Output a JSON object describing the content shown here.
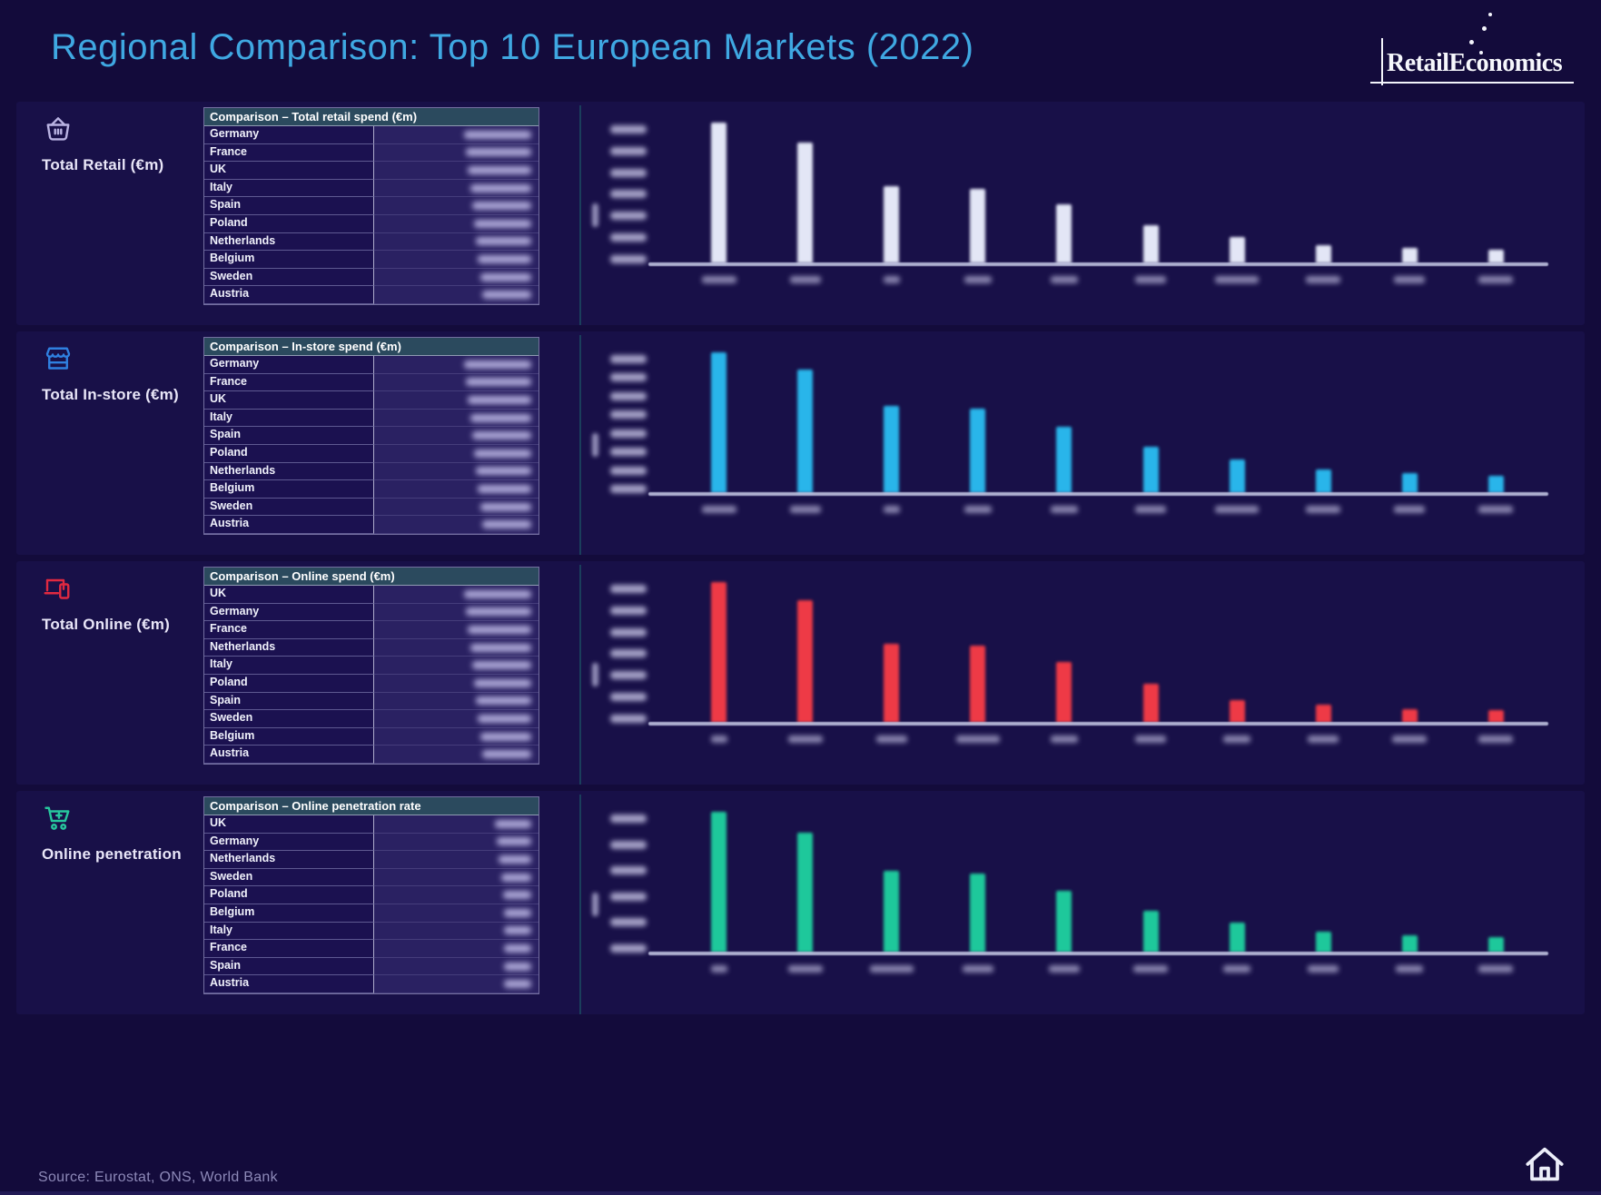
{
  "title": "Regional Comparison: Top 10 European Markets (2022)",
  "logo": {
    "text": "RetailEconomics"
  },
  "footer": {
    "source": "Source: Eurostat, ONS, World Bank"
  },
  "colors": {
    "background": "#130b3b",
    "panel": "#181048",
    "title_accent": "#3fa8e2",
    "table_header_bg": "#2b4a5e",
    "bar_retail": "#e3e6f6",
    "bar_instore": "#29b5ea",
    "bar_online": "#ee3a46",
    "bar_penetration": "#1ec89b"
  },
  "sections": [
    {
      "id": "total-retail",
      "label": "Total Retail (€m)",
      "icon": "basket-icon",
      "icon_color": "#b9b3e2",
      "table": {
        "header": "Comparison – Total retail spend (€m)",
        "rows": [
          "Germany",
          "France",
          "UK",
          "Italy",
          "Spain",
          "Poland",
          "Netherlands",
          "Belgium",
          "Sweden",
          "Austria"
        ],
        "values_blurred": true
      }
    },
    {
      "id": "total-instore",
      "label": "Total In-store (€m)",
      "icon": "storefront-icon",
      "icon_color": "#2f80e0",
      "table": {
        "header": "Comparison – In-store spend (€m)",
        "rows": [
          "Germany",
          "France",
          "UK",
          "Italy",
          "Spain",
          "Poland",
          "Netherlands",
          "Belgium",
          "Sweden",
          "Austria"
        ],
        "values_blurred": true
      }
    },
    {
      "id": "total-online",
      "label": "Total Online (€m)",
      "icon": "devices-icon",
      "icon_color": "#e02940",
      "table": {
        "header": "Comparison – Online spend (€m)",
        "rows": [
          "UK",
          "Germany",
          "France",
          "Netherlands",
          "Italy",
          "Poland",
          "Spain",
          "Sweden",
          "Belgium",
          "Austria"
        ],
        "values_blurred": true
      }
    },
    {
      "id": "online-penetration",
      "label": "Online penetration",
      "icon": "cart-plus-icon",
      "icon_color": "#27c79e",
      "table": {
        "header": "Comparison – Online penetration rate",
        "rows": [
          "UK",
          "Germany",
          "Netherlands",
          "Sweden",
          "Poland",
          "Belgium",
          "Italy",
          "France",
          "Spain",
          "Austria"
        ],
        "values_blurred": true
      }
    }
  ],
  "chart_data": [
    {
      "type": "bar",
      "title": "Total retail spend (€m)",
      "color": "#e3e6f6",
      "categories": [
        "Germany",
        "France",
        "UK",
        "Italy",
        "Spain",
        "Poland",
        "Netherlands",
        "Belgium",
        "Sweden",
        "Austria"
      ],
      "values_relative_pct": [
        100,
        86,
        55,
        53,
        42,
        27,
        19,
        13,
        11,
        10
      ],
      "y_tick_count": 7,
      "axis_labels_blurred": true
    },
    {
      "type": "bar",
      "title": "In-store spend (€m)",
      "color": "#29b5ea",
      "categories": [
        "Germany",
        "France",
        "UK",
        "Italy",
        "Spain",
        "Poland",
        "Netherlands",
        "Belgium",
        "Sweden",
        "Austria"
      ],
      "values_relative_pct": [
        100,
        88,
        62,
        60,
        47,
        33,
        24,
        17,
        14,
        12
      ],
      "y_tick_count": 8,
      "axis_labels_blurred": true
    },
    {
      "type": "bar",
      "title": "Online spend (€m)",
      "color": "#ee3a46",
      "categories": [
        "UK",
        "Germany",
        "France",
        "Netherlands",
        "Italy",
        "Poland",
        "Spain",
        "Sweden",
        "Belgium",
        "Austria"
      ],
      "values_relative_pct": [
        100,
        87,
        56,
        55,
        43,
        28,
        16,
        13,
        10,
        9
      ],
      "y_tick_count": 7,
      "axis_labels_blurred": true
    },
    {
      "type": "bar",
      "title": "Online penetration rate",
      "color": "#1ec89b",
      "categories": [
        "UK",
        "Germany",
        "Netherlands",
        "Sweden",
        "Poland",
        "Belgium",
        "Italy",
        "France",
        "Spain",
        "Austria"
      ],
      "values_relative_pct": [
        100,
        85,
        58,
        56,
        44,
        30,
        21,
        15,
        12,
        11
      ],
      "y_tick_count": 6,
      "axis_labels_blurred": true
    }
  ]
}
